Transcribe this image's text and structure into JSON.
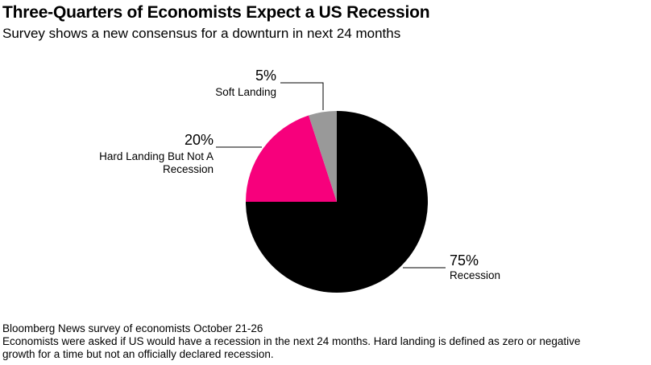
{
  "header": {
    "title": "Three-Quarters of Economists Expect a US Recession",
    "subtitle": "Survey shows a new consensus for a downturn in next 24 months"
  },
  "chart_data": {
    "type": "pie",
    "title": "Three-Quarters of Economists Expect a US Recession",
    "subtitle": "Survey shows a new consensus for a downturn in next 24 months",
    "slices": [
      {
        "label": "Recession",
        "value": 75,
        "value_label": "75%",
        "color": "#000000"
      },
      {
        "label": "Hard Landing But Not A Recession",
        "value": 20,
        "value_label": "20%",
        "color": "#f7007c"
      },
      {
        "label": "Soft Landing",
        "value": 5,
        "value_label": "5%",
        "color": "#999999"
      }
    ],
    "start": "12 o'clock",
    "direction": "clockwise",
    "label_lines": {
      "Recession": [
        "Recession"
      ],
      "Hard Landing But Not A Recession": [
        "Hard Landing But Not A",
        "Recession"
      ],
      "Soft Landing": [
        "Soft Landing"
      ]
    }
  },
  "footer": {
    "source": "Bloomberg News survey of economists October 21-26",
    "note_line1": "Economists were asked if US would have a recession in the next 24 months. Hard landing is defined as zero or negative",
    "note_line2": "growth for a time but not an officially declared recession."
  }
}
